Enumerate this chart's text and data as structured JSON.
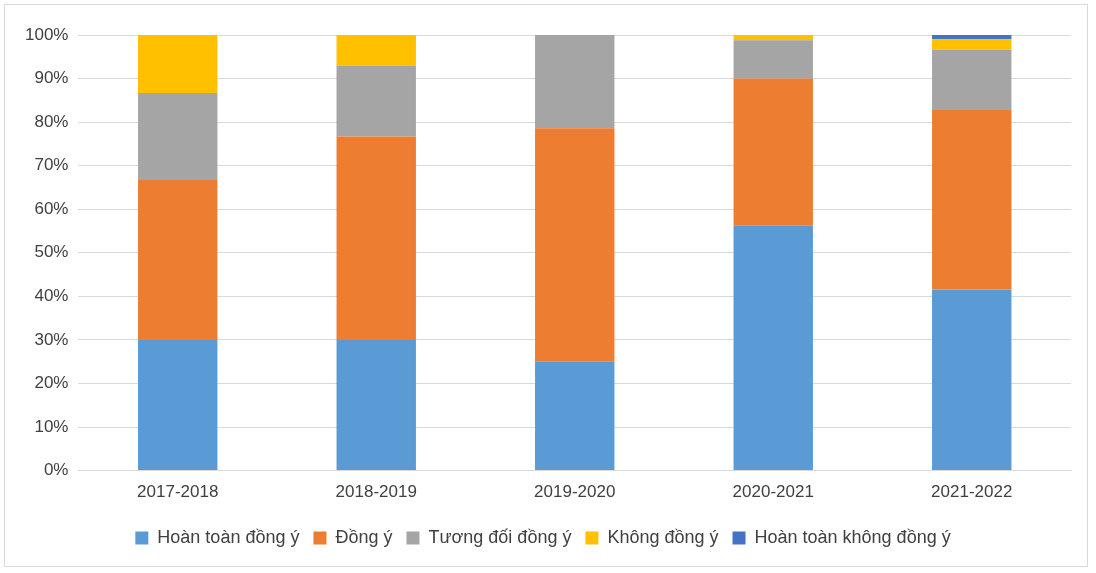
{
  "chart_data": {
    "type": "bar",
    "stacked": true,
    "categories": [
      "2017-2018",
      "2018-2019",
      "2019-2020",
      "2020-2021",
      "2021-2022"
    ],
    "series": [
      {
        "name": "Hoàn toàn đồng ý",
        "color": "#5b9bd5",
        "values": [
          30,
          30,
          25,
          56.2,
          41.6
        ]
      },
      {
        "name": "Đồng ý",
        "color": "#ed7d31",
        "values": [
          36.7,
          46.7,
          53.6,
          33.8,
          41.2
        ]
      },
      {
        "name": "Tương đối đồng ý",
        "color": "#a5a5a5",
        "values": [
          20,
          16.3,
          21.4,
          8.8,
          13.9
        ]
      },
      {
        "name": "Không đồng ý",
        "color": "#ffc000",
        "values": [
          13.3,
          7,
          0,
          1.2,
          2.3
        ]
      },
      {
        "name": "Hoàn toàn không đồng ý",
        "color": "#4472c4",
        "values": [
          0,
          0,
          0,
          0,
          1
        ]
      }
    ],
    "ylim": [
      0,
      100
    ],
    "yticks": [
      {
        "value": 0,
        "label": "0%"
      },
      {
        "value": 10,
        "label": "10%"
      },
      {
        "value": 20,
        "label": "20%"
      },
      {
        "value": 30,
        "label": "30%"
      },
      {
        "value": 40,
        "label": "40%"
      },
      {
        "value": 50,
        "label": "50%"
      },
      {
        "value": 60,
        "label": "60%"
      },
      {
        "value": 70,
        "label": "70%"
      },
      {
        "value": 80,
        "label": "80%"
      },
      {
        "value": 90,
        "label": "90%"
      },
      {
        "value": 100,
        "label": "100%"
      }
    ],
    "grid": "y",
    "legend": "bottom"
  }
}
